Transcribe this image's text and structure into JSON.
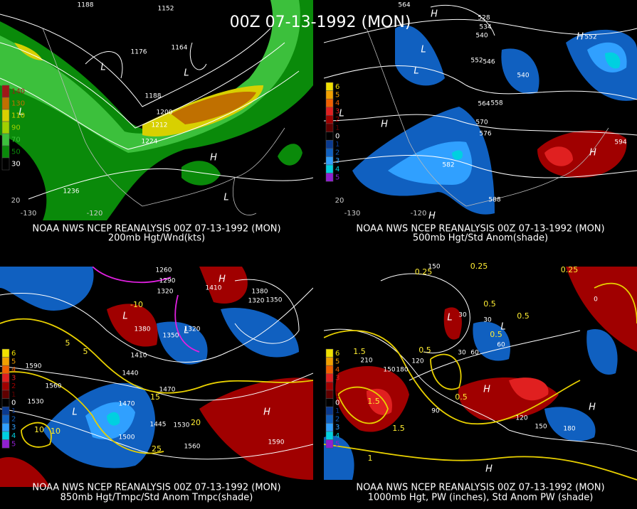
{
  "title": "00Z 07-13-1992 (MON)",
  "panels": [
    {
      "source": "NOAA NWS NCEP REANALYSIS 00Z 07-13-1992 (MON)",
      "caption": "200mb Hgt/Wnd(kts)",
      "colorbar_labels": [
        140,
        130,
        110,
        90,
        70,
        50,
        30
      ],
      "colorbar_colors": [
        "#a01818",
        "#c07000",
        "#d8d000",
        "#a0d000",
        "#3cc03c",
        "#0a8a0a",
        "#000000"
      ],
      "height_labels": [
        1188,
        1152,
        1176,
        1164,
        1188,
        1200,
        1212,
        1224,
        1236
      ],
      "centers": [
        "L",
        "L",
        "L",
        "H",
        "L"
      ],
      "lat_labels": [
        20
      ],
      "lon_labels": [
        -130,
        -120
      ]
    },
    {
      "source": "NOAA NWS NCEP REANALYSIS 00Z 07-13-1992 (MON)",
      "caption": "500mb Hgt/Std Anom(shade)",
      "colorbar_labels": [
        6,
        5,
        4,
        3,
        2,
        1,
        0,
        1,
        2,
        3,
        4,
        5
      ],
      "colorbar_colors": [
        "#f0e000",
        "#f0a000",
        "#f06000",
        "#e02020",
        "#a00000",
        "#600000",
        "#000000",
        "#0a3a90",
        "#1060c0",
        "#30a0ff",
        "#00d0e0",
        "#9020d0"
      ],
      "height_labels": [
        564,
        528,
        534,
        540,
        552,
        546,
        540,
        558,
        564,
        570,
        576,
        582,
        588,
        594,
        552
      ],
      "centers": [
        "H",
        "L",
        "L",
        "L",
        "H",
        "H",
        "H",
        "H"
      ],
      "lat_labels": [
        20
      ],
      "lon_labels": [
        -130,
        -120
      ]
    },
    {
      "source": "NOAA NWS NCEP REANALYSIS 00Z 07-13-1992 (MON)",
      "caption": "850mb Hgt/Tmpc/Std Anom Tmpc(shade)",
      "colorbar_labels": [
        6,
        5,
        4,
        3,
        2,
        1,
        0,
        1,
        2,
        3,
        4,
        5
      ],
      "colorbar_colors": [
        "#f0e000",
        "#f0a000",
        "#f06000",
        "#e02020",
        "#a00000",
        "#600000",
        "#000000",
        "#0a3a90",
        "#1060c0",
        "#30a0ff",
        "#00d0e0",
        "#9020d0"
      ],
      "height_labels": [
        1260,
        1290,
        1320,
        1410,
        1320,
        1380,
        1350,
        1320,
        1410,
        1440,
        1470,
        1470,
        1530,
        1560,
        1590,
        1500,
        1445,
        1560,
        1530,
        1590,
        1350,
        1380
      ],
      "overlay_labels": [
        -10,
        5,
        15,
        10,
        20,
        25,
        5,
        10
      ],
      "centers": [
        "L",
        "L",
        "H",
        "H",
        "L"
      ]
    },
    {
      "source": "NOAA NWS NCEP REANALYSIS 00Z 07-13-1992 (MON)",
      "caption": "1000mb Hgt, PW (inches), Std Anom PW (shade)",
      "colorbar_labels": [
        6,
        5,
        4,
        3,
        2,
        1,
        0,
        1,
        2,
        3,
        4,
        5
      ],
      "colorbar_colors": [
        "#f0e000",
        "#f0a000",
        "#f06000",
        "#e02020",
        "#a00000",
        "#600000",
        "#000000",
        "#0a3a90",
        "#1060c0",
        "#30a0ff",
        "#00d0e0",
        "#9020d0"
      ],
      "height_labels": [
        150,
        30,
        60,
        90,
        120,
        150,
        180,
        210,
        180,
        150,
        120,
        0,
        30,
        60,
        30
      ],
      "overlay_labels": [
        0.25,
        0.25,
        0.5,
        0.5,
        0.5,
        0.5,
        1.5,
        1.5,
        1.5,
        1,
        0.5,
        0.25
      ],
      "centers": [
        "L",
        "L",
        "H",
        "H",
        "H"
      ]
    }
  ]
}
